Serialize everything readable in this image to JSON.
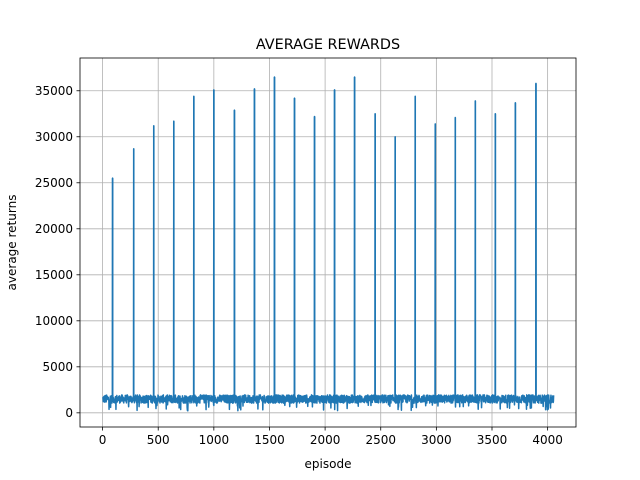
{
  "chart_data": {
    "type": "line",
    "title": "AVERAGE REWARDS",
    "xlabel": "episode",
    "ylabel": "average returns",
    "xlim": [
      -203,
      4255
    ],
    "ylim": [
      -1540,
      38560
    ],
    "xticks": [
      0,
      500,
      1000,
      1500,
      2000,
      2500,
      3000,
      3500,
      4000
    ],
    "yticks": [
      0,
      5000,
      10000,
      15000,
      20000,
      25000,
      30000,
      35000
    ],
    "grid": true,
    "series": [
      {
        "color": "#1f77b4",
        "x_range": [
          0,
          4055
        ],
        "baseline": {
          "mean": 1500,
          "min": 200,
          "max": 2200
        },
        "spikes": [
          {
            "x": 90,
            "y": 25500
          },
          {
            "x": 280,
            "y": 28700
          },
          {
            "x": 460,
            "y": 31200
          },
          {
            "x": 640,
            "y": 31700
          },
          {
            "x": 820,
            "y": 34400
          },
          {
            "x": 1000,
            "y": 35100
          },
          {
            "x": 1185,
            "y": 32900
          },
          {
            "x": 1365,
            "y": 35200
          },
          {
            "x": 1545,
            "y": 36500
          },
          {
            "x": 1725,
            "y": 34200
          },
          {
            "x": 1905,
            "y": 32200
          },
          {
            "x": 2085,
            "y": 35100
          },
          {
            "x": 2265,
            "y": 36500
          },
          {
            "x": 2450,
            "y": 32500
          },
          {
            "x": 2630,
            "y": 30000
          },
          {
            "x": 2810,
            "y": 34400
          },
          {
            "x": 2990,
            "y": 31400
          },
          {
            "x": 3170,
            "y": 32100
          },
          {
            "x": 3350,
            "y": 33900
          },
          {
            "x": 3530,
            "y": 32500
          },
          {
            "x": 3710,
            "y": 33700
          },
          {
            "x": 3895,
            "y": 35800
          }
        ]
      }
    ]
  }
}
